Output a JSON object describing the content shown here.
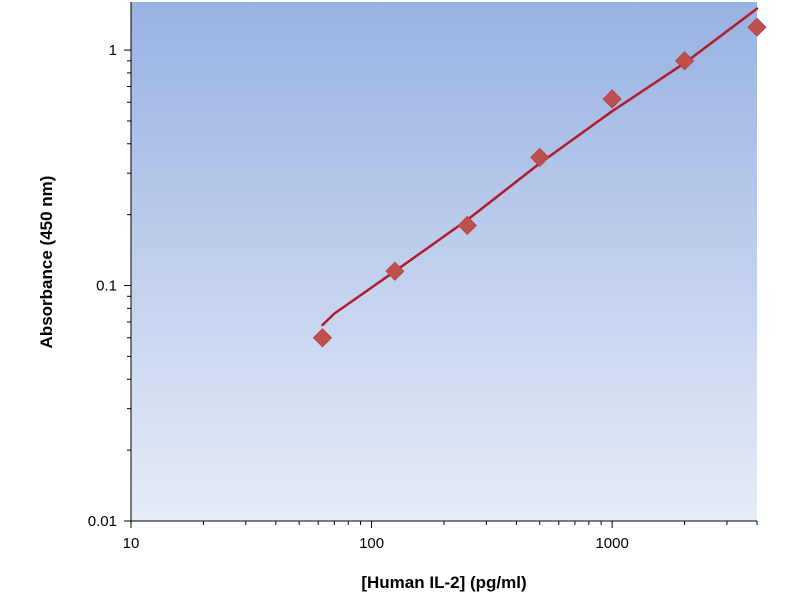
{
  "chart_data": {
    "type": "scatter",
    "title": "",
    "xlabel": "[Human IL-2] (pg/ml)",
    "ylabel": "Absorbance (450 nm)",
    "x_scale": "log",
    "y_scale": "log",
    "xlim": [
      10,
      4000
    ],
    "ylim": [
      0.01,
      1.6
    ],
    "x_ticks": [
      {
        "value": 10,
        "label": "10"
      },
      {
        "value": 100,
        "label": "100"
      },
      {
        "value": 1000,
        "label": "1000"
      }
    ],
    "y_ticks": [
      {
        "value": 0.01,
        "label": "0.01"
      },
      {
        "value": 0.1,
        "label": "0.1"
      },
      {
        "value": 1,
        "label": "1"
      }
    ],
    "grid": false,
    "legend": "none",
    "series": [
      {
        "marker": "diamond",
        "color": "#c0504d",
        "x": [
          62.5,
          125,
          250,
          500,
          1000,
          2000,
          4000
        ],
        "y": [
          0.06,
          0.115,
          0.18,
          0.35,
          0.62,
          0.9,
          1.25
        ]
      }
    ],
    "fit_line": {
      "color": "#b01c2e",
      "x": [
        62.5,
        70,
        125,
        250,
        500,
        1000,
        2000,
        4000
      ],
      "y": [
        0.068,
        0.076,
        0.115,
        0.19,
        0.33,
        0.55,
        0.88,
        1.5
      ]
    },
    "background_gradient": [
      "#98b2e2",
      "#e6ecf8"
    ]
  }
}
